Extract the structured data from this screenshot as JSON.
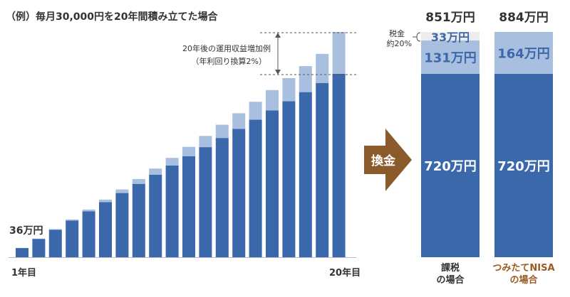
{
  "title": "（例）毎月30,000円を20年間積み立てた場合",
  "colors": {
    "principal": "#3a68ab",
    "gain": "#a9bfdf",
    "tax": "#ececec",
    "arrow": "#8b5a2b",
    "nisa_label": "#9a5a21",
    "guide": "#555555",
    "white": "#ffffff"
  },
  "chart_data": [
    {
      "type": "bar",
      "stacked": true,
      "x_label_first": "1年目",
      "x_label_last": "20年目",
      "first_value_label": "36万円",
      "annotation_line1": "20年後の運用収益増加例",
      "annotation_line2": "（年利回り換算2%）",
      "ylim": [
        0,
        884
      ],
      "series": [
        {
          "values": [
            36,
            72,
            108,
            144,
            180,
            216,
            252,
            288,
            324,
            360,
            396,
            432,
            468,
            504,
            540,
            576,
            612,
            648,
            684,
            720
          ]
        },
        {
          "values": [
            0,
            1,
            2,
            4,
            7,
            10,
            14,
            19,
            24,
            30,
            37,
            44,
            52,
            61,
            70,
            80,
            91,
            102,
            114,
            164
          ]
        }
      ]
    },
    {
      "type": "bar",
      "stacked": true,
      "categories": [
        "課税\nの場合",
        "つみたてNISA\nの場合"
      ],
      "totals": [
        "851万円",
        "884万円"
      ],
      "ylim": [
        0,
        884
      ],
      "series": [
        {
          "values": [
            720,
            720
          ],
          "labels": [
            "720万円",
            "720万円"
          ]
        },
        {
          "values": [
            131,
            164
          ],
          "labels": [
            "131万円",
            "164万円"
          ]
        },
        {
          "values": [
            33,
            0
          ],
          "labels": [
            "33万円",
            ""
          ]
        }
      ],
      "tax_note_line1": "税金",
      "tax_note_line2": "約20%"
    }
  ],
  "arrow_label": "換金",
  "category_labels": {
    "taxed_line1": "課税",
    "taxed_line2": "の場合",
    "nisa_line1": "つみたてNISA",
    "nisa_line2": "の場合"
  }
}
